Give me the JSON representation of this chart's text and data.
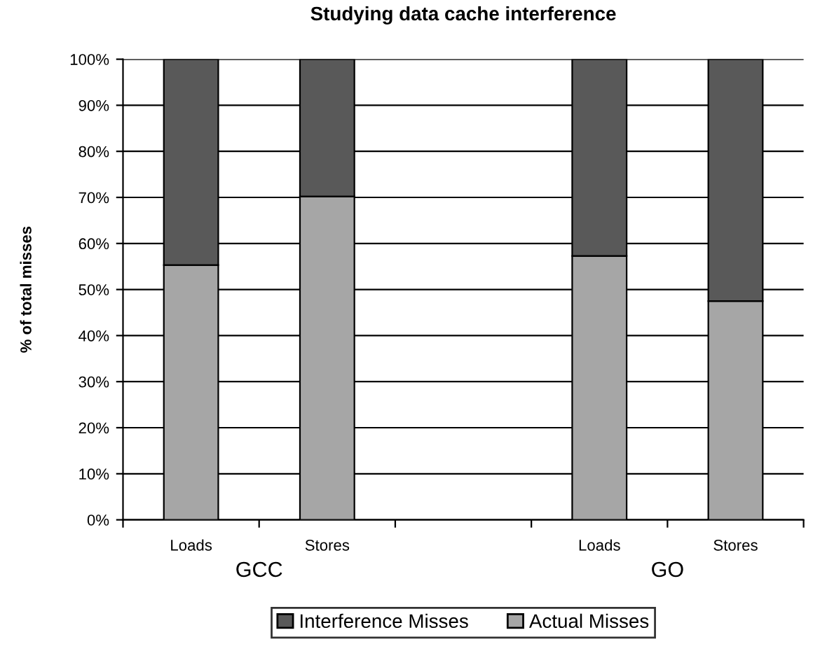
{
  "chart_data": {
    "type": "bar",
    "title": "Studying data cache interference",
    "ylabel": "% of total misses",
    "categories": [
      "Loads",
      "Stores",
      null,
      "Loads",
      "Stores"
    ],
    "stacked": true,
    "series": [
      {
        "name": "Actual Misses",
        "color": "#a6a6a6",
        "values": [
          55.3,
          70.2,
          null,
          57.3,
          47.5
        ]
      },
      {
        "name": "Interference Misses",
        "color": "#595959",
        "values": [
          44.7,
          29.8,
          null,
          42.7,
          52.5
        ]
      }
    ],
    "ylim": [
      0,
      100
    ],
    "yticks": [
      {
        "value": 0,
        "label": "0%"
      },
      {
        "value": 10,
        "label": "10%"
      },
      {
        "value": 20,
        "label": "20%"
      },
      {
        "value": 30,
        "label": "30%"
      },
      {
        "value": 40,
        "label": "40%"
      },
      {
        "value": 50,
        "label": "50%"
      },
      {
        "value": 60,
        "label": "60%"
      },
      {
        "value": 70,
        "label": "70%"
      },
      {
        "value": 80,
        "label": "80%"
      },
      {
        "value": 90,
        "label": "90%"
      },
      {
        "value": 100,
        "label": "100%"
      }
    ],
    "grid": "y",
    "legend": "bottom",
    "annotations": [
      "GCC",
      "GO"
    ]
  }
}
